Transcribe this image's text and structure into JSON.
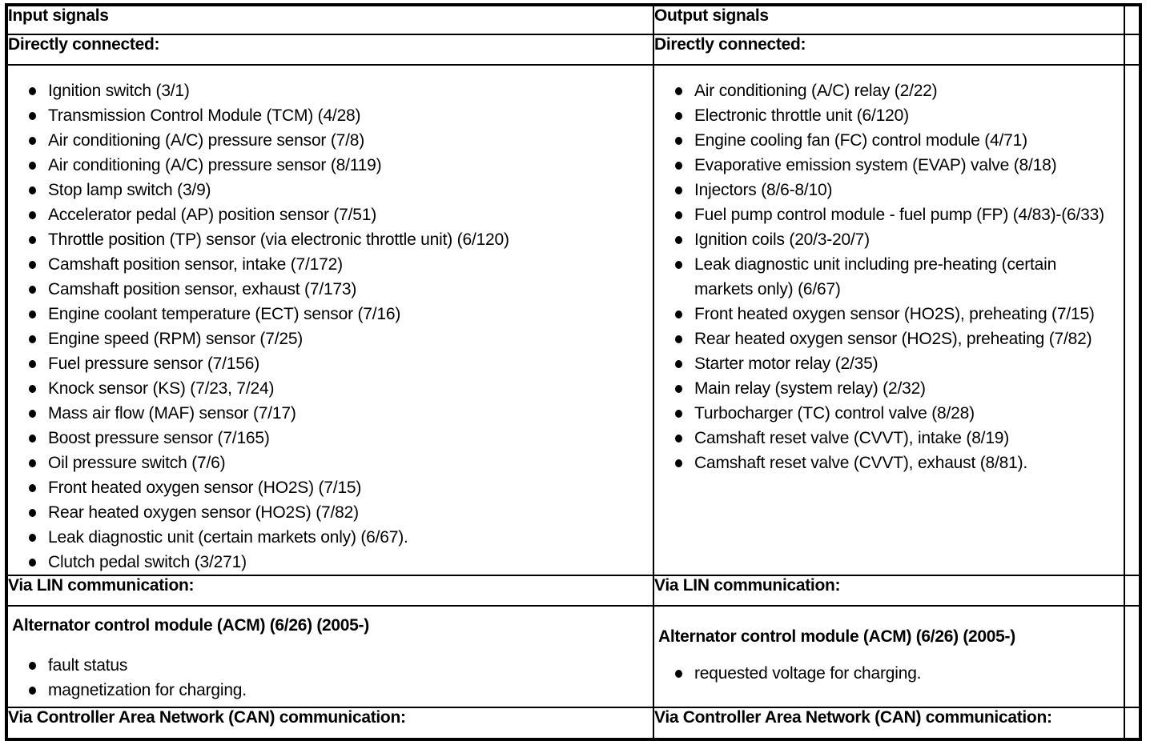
{
  "table": {
    "input": {
      "header": "Input signals",
      "directly_connected_label": "Directly connected:",
      "directly_connected_items": [
        "Ignition switch (3/1)",
        "Transmission Control Module (TCM) (4/28)",
        "Air conditioning (A/C) pressure sensor (7/8)",
        "Air conditioning (A/C) pressure sensor (8/119)",
        "Stop lamp switch (3/9)",
        "Accelerator pedal (AP) position sensor (7/51)",
        "Throttle position (TP) sensor (via electronic throttle unit) (6/120)",
        "Camshaft position sensor, intake (7/172)",
        "Camshaft position sensor, exhaust (7/173)",
        "Engine coolant temperature (ECT) sensor (7/16)",
        "Engine speed (RPM) sensor (7/25)",
        "Fuel pressure sensor (7/156)",
        "Knock sensor (KS) (7/23, 7/24)",
        "Mass air flow (MAF) sensor (7/17)",
        "Boost pressure sensor (7/165)",
        "Oil pressure switch (7/6)",
        "Front heated oxygen sensor (HO2S) (7/15)",
        "Rear heated oxygen sensor (HO2S) (7/82)",
        "Leak diagnostic unit (certain markets only) (6/67).",
        "Clutch pedal switch (3/271)"
      ],
      "via_lin_label": "Via LIN communication:",
      "lin_heading": "Alternator control module (ACM) (6/26) (2005-)",
      "lin_items": [
        "fault status",
        "magnetization for charging."
      ],
      "via_can_label": "Via Controller Area Network (CAN) communication:"
    },
    "output": {
      "header": "Output signals",
      "directly_connected_label": "Directly connected:",
      "directly_connected_items": [
        "Air conditioning (A/C) relay (2/22)",
        "Electronic throttle unit (6/120)",
        "Engine cooling fan (FC) control module (4/71)",
        "Evaporative emission system (EVAP) valve (8/18)",
        "Injectors (8/6-8/10)",
        "Fuel pump control module - fuel pump (FP) (4/83)-(6/33)",
        "Ignition coils (20/3-20/7)",
        "Leak diagnostic unit including pre-heating (certain markets only) (6/67)",
        "Front heated oxygen sensor (HO2S), preheating (7/15)",
        "Rear heated oxygen sensor (HO2S), preheating (7/82)",
        "Starter motor relay (2/35)",
        "Main relay (system relay) (2/32)",
        "Turbocharger (TC) control valve (8/28)",
        "Camshaft reset valve (CVVT), intake (8/19)",
        "Camshaft reset valve (CVVT), exhaust (8/81)."
      ],
      "via_lin_label": "Via LIN communication:",
      "lin_heading": "Alternator control module (ACM) (6/26) (2005-)",
      "lin_items": [
        "requested voltage for charging."
      ],
      "via_can_label": "Via Controller Area Network (CAN) communication:"
    },
    "colors": {
      "text": "#000000",
      "border": "#000000",
      "background": "#ffffff"
    }
  }
}
